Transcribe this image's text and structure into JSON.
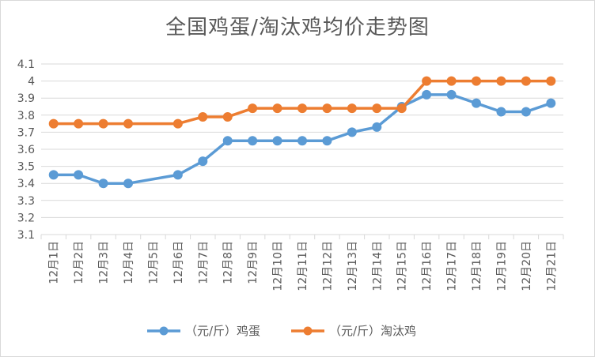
{
  "chart_data": {
    "type": "line",
    "title": "全国鸡蛋/淘汰鸡均价走势图",
    "categories": [
      "12月1日",
      "12月2日",
      "12月3日",
      "12月4日",
      "12月5日",
      "12月6日",
      "12月7日",
      "12月8日",
      "12月9日",
      "12月10日",
      "12月11日",
      "12月12日",
      "12月13日",
      "12月14日",
      "12月15日",
      "12月16日",
      "12月17日",
      "12月18日",
      "12月19日",
      "12月20日",
      "12月21日"
    ],
    "series": [
      {
        "name": "（元/斤）鸡蛋",
        "color": "#5B9BD5",
        "values": [
          3.45,
          3.45,
          3.4,
          3.4,
          null,
          3.45,
          3.53,
          3.65,
          3.65,
          3.65,
          3.65,
          3.65,
          3.7,
          3.73,
          3.85,
          3.92,
          3.92,
          3.87,
          3.82,
          3.82,
          3.87
        ]
      },
      {
        "name": "（元/斤）淘汰鸡",
        "color": "#ED7D31",
        "values": [
          3.75,
          3.75,
          3.75,
          3.75,
          null,
          3.75,
          3.79,
          3.79,
          3.84,
          3.84,
          3.84,
          3.84,
          3.84,
          3.84,
          3.84,
          4.0,
          4.0,
          4.0,
          4.0,
          4.0,
          4.0
        ]
      }
    ],
    "ylim": [
      3.1,
      4.1
    ],
    "yticks": [
      "3.1",
      "3.2",
      "3.3",
      "3.4",
      "3.5",
      "3.6",
      "3.7",
      "3.8",
      "3.9",
      "4",
      "4.1"
    ],
    "xlabel": "",
    "ylabel": "",
    "grid": true,
    "legend_position": "bottom"
  }
}
